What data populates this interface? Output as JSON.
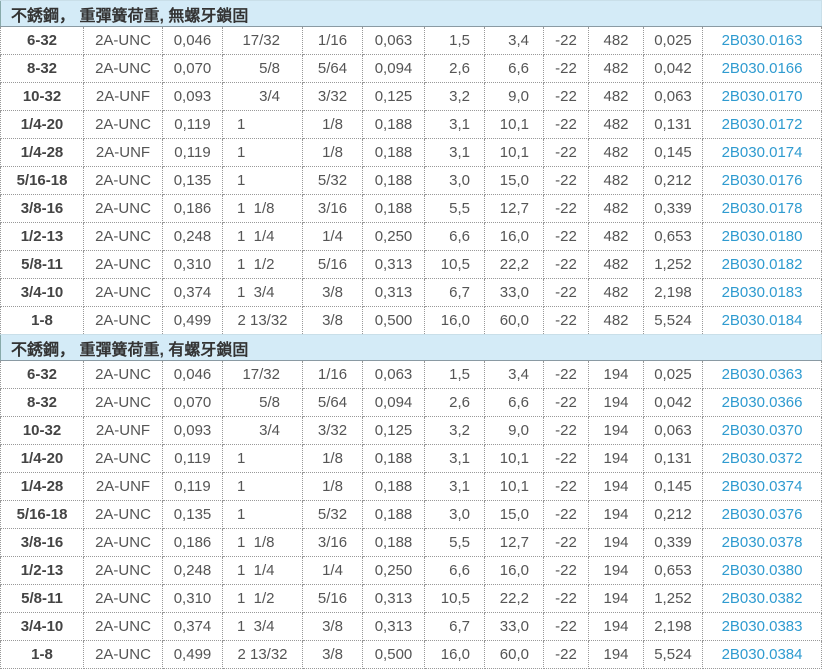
{
  "colors": {
    "section_bg": "#d4ebf7",
    "text": "#555555",
    "link": "#2f9bd0"
  },
  "sections": [
    {
      "title": "不銹鋼， 重彈簧荷重, 無螺牙鎖固",
      "rows": [
        [
          "6-32",
          "2A-UNC",
          "0,046",
          "17/32",
          "1/16",
          "0,063",
          "1,5",
          "3,4",
          "-22",
          "482",
          "0,025",
          "2B030.0163"
        ],
        [
          "8-32",
          "2A-UNC",
          "0,070",
          "5/8",
          "5/64",
          "0,094",
          "2,6",
          "6,6",
          "-22",
          "482",
          "0,042",
          "2B030.0166"
        ],
        [
          "10-32",
          "2A-UNF",
          "0,093",
          "3/4",
          "3/32",
          "0,125",
          "3,2",
          "9,0",
          "-22",
          "482",
          "0,063",
          "2B030.0170"
        ],
        [
          "1/4-20",
          "2A-UNC",
          "0,119",
          "1",
          "1/8",
          "0,188",
          "3,1",
          "10,1",
          "-22",
          "482",
          "0,131",
          "2B030.0172"
        ],
        [
          "1/4-28",
          "2A-UNF",
          "0,119",
          "1",
          "1/8",
          "0,188",
          "3,1",
          "10,1",
          "-22",
          "482",
          "0,145",
          "2B030.0174"
        ],
        [
          "5/16-18",
          "2A-UNC",
          "0,135",
          "1",
          "5/32",
          "0,188",
          "3,0",
          "15,0",
          "-22",
          "482",
          "0,212",
          "2B030.0176"
        ],
        [
          "3/8-16",
          "2A-UNC",
          "0,186",
          "1  1/8",
          "3/16",
          "0,188",
          "5,5",
          "12,7",
          "-22",
          "482",
          "0,339",
          "2B030.0178"
        ],
        [
          "1/2-13",
          "2A-UNC",
          "0,248",
          "1  1/4",
          "1/4",
          "0,250",
          "6,6",
          "16,0",
          "-22",
          "482",
          "0,653",
          "2B030.0180"
        ],
        [
          "5/8-11",
          "2A-UNC",
          "0,310",
          "1  1/2",
          "5/16",
          "0,313",
          "10,5",
          "22,2",
          "-22",
          "482",
          "1,252",
          "2B030.0182"
        ],
        [
          "3/4-10",
          "2A-UNC",
          "0,374",
          "1  3/4",
          "3/8",
          "0,313",
          "6,7",
          "33,0",
          "-22",
          "482",
          "2,198",
          "2B030.0183"
        ],
        [
          "1-8",
          "2A-UNC",
          "0,499",
          "2 13/32",
          "3/8",
          "0,500",
          "16,0",
          "60,0",
          "-22",
          "482",
          "5,524",
          "2B030.0184"
        ]
      ]
    },
    {
      "title": "不銹鋼， 重彈簧荷重, 有螺牙鎖固",
      "rows": [
        [
          "6-32",
          "2A-UNC",
          "0,046",
          "17/32",
          "1/16",
          "0,063",
          "1,5",
          "3,4",
          "-22",
          "194",
          "0,025",
          "2B030.0363"
        ],
        [
          "8-32",
          "2A-UNC",
          "0,070",
          "5/8",
          "5/64",
          "0,094",
          "2,6",
          "6,6",
          "-22",
          "194",
          "0,042",
          "2B030.0366"
        ],
        [
          "10-32",
          "2A-UNF",
          "0,093",
          "3/4",
          "3/32",
          "0,125",
          "3,2",
          "9,0",
          "-22",
          "194",
          "0,063",
          "2B030.0370"
        ],
        [
          "1/4-20",
          "2A-UNC",
          "0,119",
          "1",
          "1/8",
          "0,188",
          "3,1",
          "10,1",
          "-22",
          "194",
          "0,131",
          "2B030.0372"
        ],
        [
          "1/4-28",
          "2A-UNF",
          "0,119",
          "1",
          "1/8",
          "0,188",
          "3,1",
          "10,1",
          "-22",
          "194",
          "0,145",
          "2B030.0374"
        ],
        [
          "5/16-18",
          "2A-UNC",
          "0,135",
          "1",
          "5/32",
          "0,188",
          "3,0",
          "15,0",
          "-22",
          "194",
          "0,212",
          "2B030.0376"
        ],
        [
          "3/8-16",
          "2A-UNC",
          "0,186",
          "1  1/8",
          "3/16",
          "0,188",
          "5,5",
          "12,7",
          "-22",
          "194",
          "0,339",
          "2B030.0378"
        ],
        [
          "1/2-13",
          "2A-UNC",
          "0,248",
          "1  1/4",
          "1/4",
          "0,250",
          "6,6",
          "16,0",
          "-22",
          "194",
          "0,653",
          "2B030.0380"
        ],
        [
          "5/8-11",
          "2A-UNC",
          "0,310",
          "1  1/2",
          "5/16",
          "0,313",
          "10,5",
          "22,2",
          "-22",
          "194",
          "1,252",
          "2B030.0382"
        ],
        [
          "3/4-10",
          "2A-UNC",
          "0,374",
          "1  3/4",
          "3/8",
          "0,313",
          "6,7",
          "33,0",
          "-22",
          "194",
          "2,198",
          "2B030.0383"
        ],
        [
          "1-8",
          "2A-UNC",
          "0,499",
          "2 13/32",
          "3/8",
          "0,500",
          "16,0",
          "60,0",
          "-22",
          "194",
          "5,524",
          "2B030.0384"
        ]
      ]
    }
  ]
}
